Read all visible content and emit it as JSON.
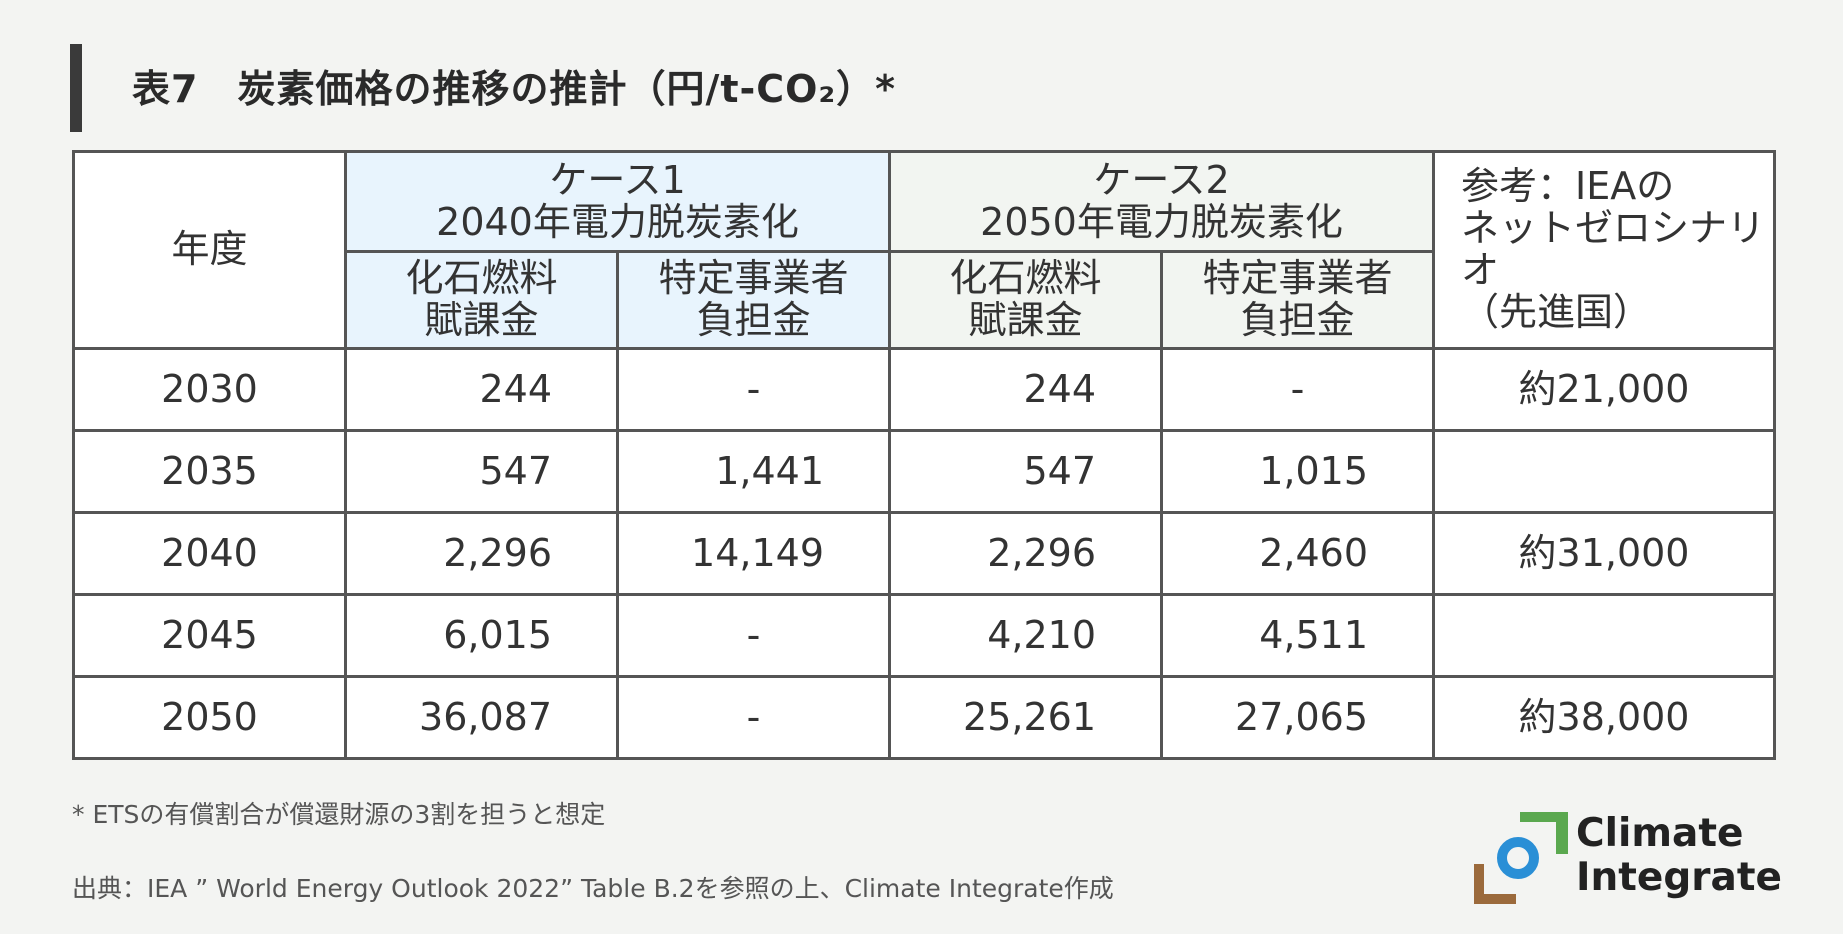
{
  "title": "表7　炭素価格の推移の推計（円/t-CO₂）*",
  "header": {
    "year": "年度",
    "case1_line1": "ケース1",
    "case1_line2": "2040年電力脱炭素化",
    "case2_line1": "ケース2",
    "case2_line2": "2050年電力脱炭素化",
    "ref_line1": "参考：IEAの",
    "ref_line2": "ネットゼロシナリオ",
    "ref_line3": "（先進国）",
    "fossil_line1": "化石燃料",
    "fossil_line2": "賦課金",
    "specific_line1": "特定事業者",
    "specific_line2": "負担金"
  },
  "rows": [
    {
      "year": "2030",
      "c1_fossil": "244",
      "c1_specific": "-",
      "c2_fossil": "244",
      "c2_specific": "-",
      "ref": "約21,000"
    },
    {
      "year": "2035",
      "c1_fossil": "547",
      "c1_specific": "1,441",
      "c2_fossil": "547",
      "c2_specific": "1,015",
      "ref": ""
    },
    {
      "year": "2040",
      "c1_fossil": "2,296",
      "c1_specific": "14,149",
      "c2_fossil": "2,296",
      "c2_specific": "2,460",
      "ref": "約31,000"
    },
    {
      "year": "2045",
      "c1_fossil": "6,015",
      "c1_specific": "-",
      "c2_fossil": "4,210",
      "c2_specific": "4,511",
      "ref": ""
    },
    {
      "year": "2050",
      "c1_fossil": "36,087",
      "c1_specific": "-",
      "c2_fossil": "25,261",
      "c2_specific": "27,065",
      "ref": "約38,000"
    }
  ],
  "footnote": "* ETSの有償割合が償還財源の3割を担うと想定",
  "source": "出典：IEA ” World Energy Outlook 2022” Table B.2を参照の上、Climate Integrate作成",
  "logo": {
    "line1": "Climate",
    "line2": "Integrate",
    "colors": {
      "green": "#5aa84f",
      "blue": "#2a8fd6",
      "brown": "#9b6a3c"
    }
  }
}
